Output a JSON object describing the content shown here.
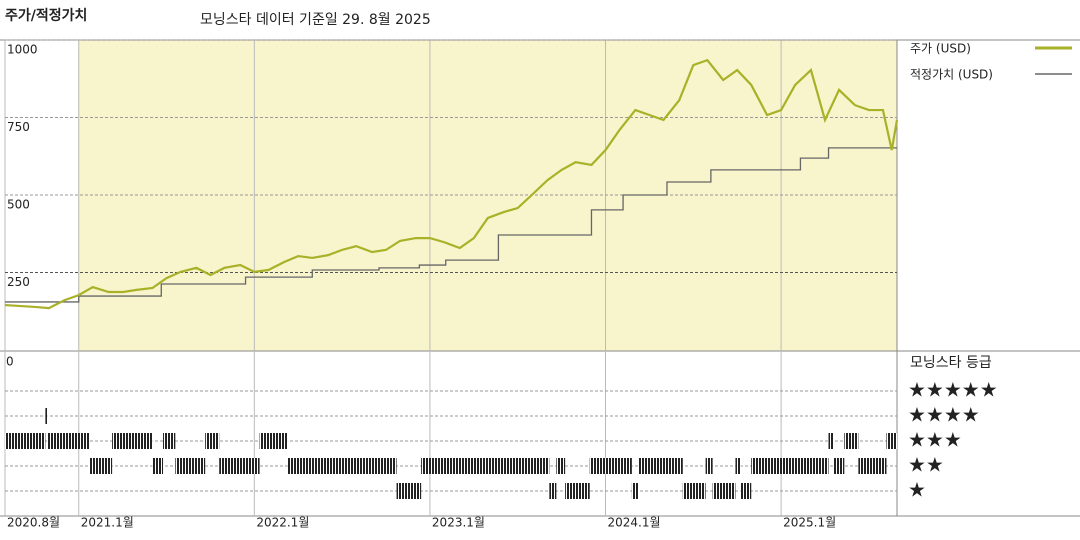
{
  "title": "주가/적정가치",
  "subtitle": "모닝스타 데이터 기준일 29. 8월 2025",
  "chart_data": {
    "type": "line",
    "xlim": [
      2020.58,
      2025.66
    ],
    "xticks": [
      {
        "value": 2020.58,
        "label": "2020.8월"
      },
      {
        "value": 2021.0,
        "label": "2021.1월"
      },
      {
        "value": 2022.0,
        "label": "2022.1월"
      },
      {
        "value": 2023.0,
        "label": "2023.1월"
      },
      {
        "value": 2024.0,
        "label": "2024.1월"
      },
      {
        "value": 2025.0,
        "label": "2025.1월"
      }
    ],
    "ylim": [
      0,
      1000
    ],
    "yticks": [
      250,
      500,
      750,
      1000
    ],
    "grid": true,
    "series": [
      {
        "name": "주가 (USD)",
        "color": "#a9b128",
        "x": [
          2020.58,
          2020.75,
          2020.83,
          2020.92,
          2021.0,
          2021.08,
          2021.17,
          2021.25,
          2021.33,
          2021.42,
          2021.5,
          2021.58,
          2021.67,
          2021.75,
          2021.83,
          2021.92,
          2022.0,
          2022.08,
          2022.17,
          2022.25,
          2022.33,
          2022.42,
          2022.5,
          2022.58,
          2022.67,
          2022.75,
          2022.83,
          2022.92,
          2023.0,
          2023.08,
          2023.17,
          2023.25,
          2023.33,
          2023.42,
          2023.5,
          2023.58,
          2023.67,
          2023.75,
          2023.83,
          2023.92,
          2024.0,
          2024.08,
          2024.17,
          2024.25,
          2024.33,
          2024.42,
          2024.5,
          2024.58,
          2024.67,
          2024.75,
          2024.83,
          2024.92,
          2025.0,
          2025.08,
          2025.17,
          2025.25,
          2025.33,
          2025.42,
          2025.5,
          2025.58,
          2025.63,
          2025.66
        ],
        "values": [
          145,
          139,
          135,
          161,
          177,
          203,
          187,
          187,
          194,
          200,
          232,
          252,
          265,
          242,
          265,
          274,
          252,
          258,
          284,
          303,
          297,
          306,
          323,
          335,
          316,
          323,
          352,
          361,
          361,
          348,
          329,
          361,
          426,
          445,
          458,
          500,
          548,
          581,
          606,
          597,
          645,
          710,
          774,
          758,
          742,
          806,
          919,
          935,
          871,
          903,
          855,
          758,
          774,
          855,
          903,
          742,
          839,
          790,
          774,
          774,
          645,
          742
        ]
      },
      {
        "name": "적정가치 (USD)",
        "color": "#666666",
        "step": "post",
        "x": [
          2020.58,
          2021.0,
          2021.47,
          2021.95,
          2022.33,
          2022.71,
          2022.94,
          2023.09,
          2023.39,
          2023.92,
          2024.1,
          2024.35,
          2024.6,
          2025.11,
          2025.27,
          2025.66
        ],
        "values": [
          155,
          174,
          213,
          235,
          258,
          265,
          274,
          290,
          371,
          452,
          500,
          542,
          581,
          619,
          652,
          652
        ]
      }
    ],
    "ratings": {
      "title": "모닝스타 등급",
      "axis_label": "0",
      "levels": [
        {
          "value": 5,
          "label": "★★★★★"
        },
        {
          "value": 4,
          "label": "★★★★"
        },
        {
          "value": 3,
          "label": "★★★"
        },
        {
          "value": 2,
          "label": "★★"
        },
        {
          "value": 1,
          "label": "★"
        }
      ],
      "edges": [
        2020.58,
        2020.81,
        2020.82,
        2021.06,
        2021.19,
        2021.42,
        2021.48,
        2021.55,
        2021.72,
        2021.8,
        2022.03,
        2022.19,
        2022.81,
        2022.95,
        2023.68,
        2023.72,
        2023.77,
        2023.91,
        2024.15,
        2024.19,
        2024.44,
        2024.57,
        2024.61,
        2024.74,
        2024.77,
        2024.83,
        2025.27,
        2025.3,
        2025.36,
        2025.44,
        2025.6,
        2025.66
      ],
      "values": [
        3,
        4,
        3,
        2,
        3,
        2,
        3,
        2,
        3,
        2,
        3,
        2,
        1,
        2,
        1,
        2,
        1,
        2,
        1,
        2,
        1,
        2,
        1,
        2,
        1,
        2,
        3,
        2,
        3,
        2,
        3
      ]
    }
  }
}
